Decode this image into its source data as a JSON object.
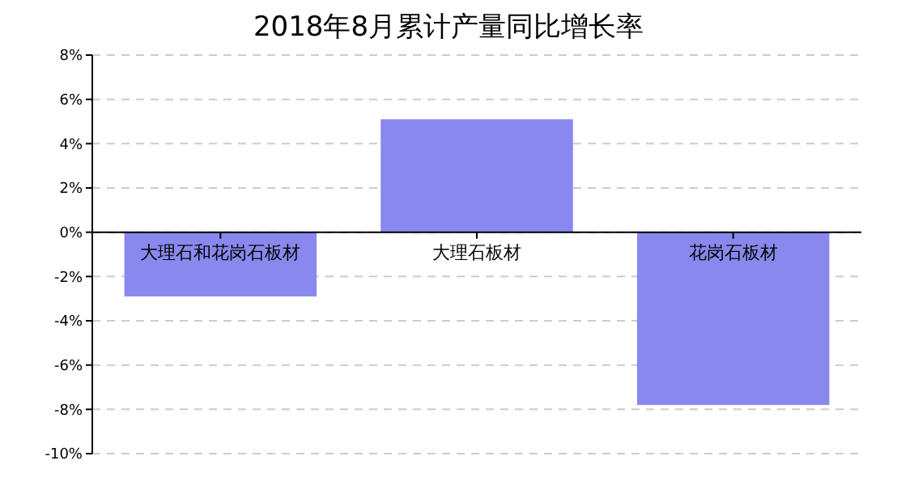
{
  "chart_data": {
    "type": "bar",
    "title": "2018年8月累计产量同比增长率",
    "categories": [
      "大理石和花岗石板材",
      "大理石板材",
      "花岗石板材"
    ],
    "values": [
      -2.9,
      5.1,
      -7.8
    ],
    "color": "#8888ee",
    "ylim": [
      -10,
      8
    ],
    "yticks": [
      {
        "value": -10,
        "label": "-10%"
      },
      {
        "value": -8,
        "label": "-8%"
      },
      {
        "value": -6,
        "label": "-6%"
      },
      {
        "value": -4,
        "label": "-4%"
      },
      {
        "value": -2,
        "label": "-2%"
      },
      {
        "value": 0,
        "label": "0%"
      },
      {
        "value": 2,
        "label": "2%"
      },
      {
        "value": 4,
        "label": "4%"
      },
      {
        "value": 6,
        "label": "6%"
      },
      {
        "value": 8,
        "label": "8%"
      }
    ],
    "grid": "y"
  }
}
